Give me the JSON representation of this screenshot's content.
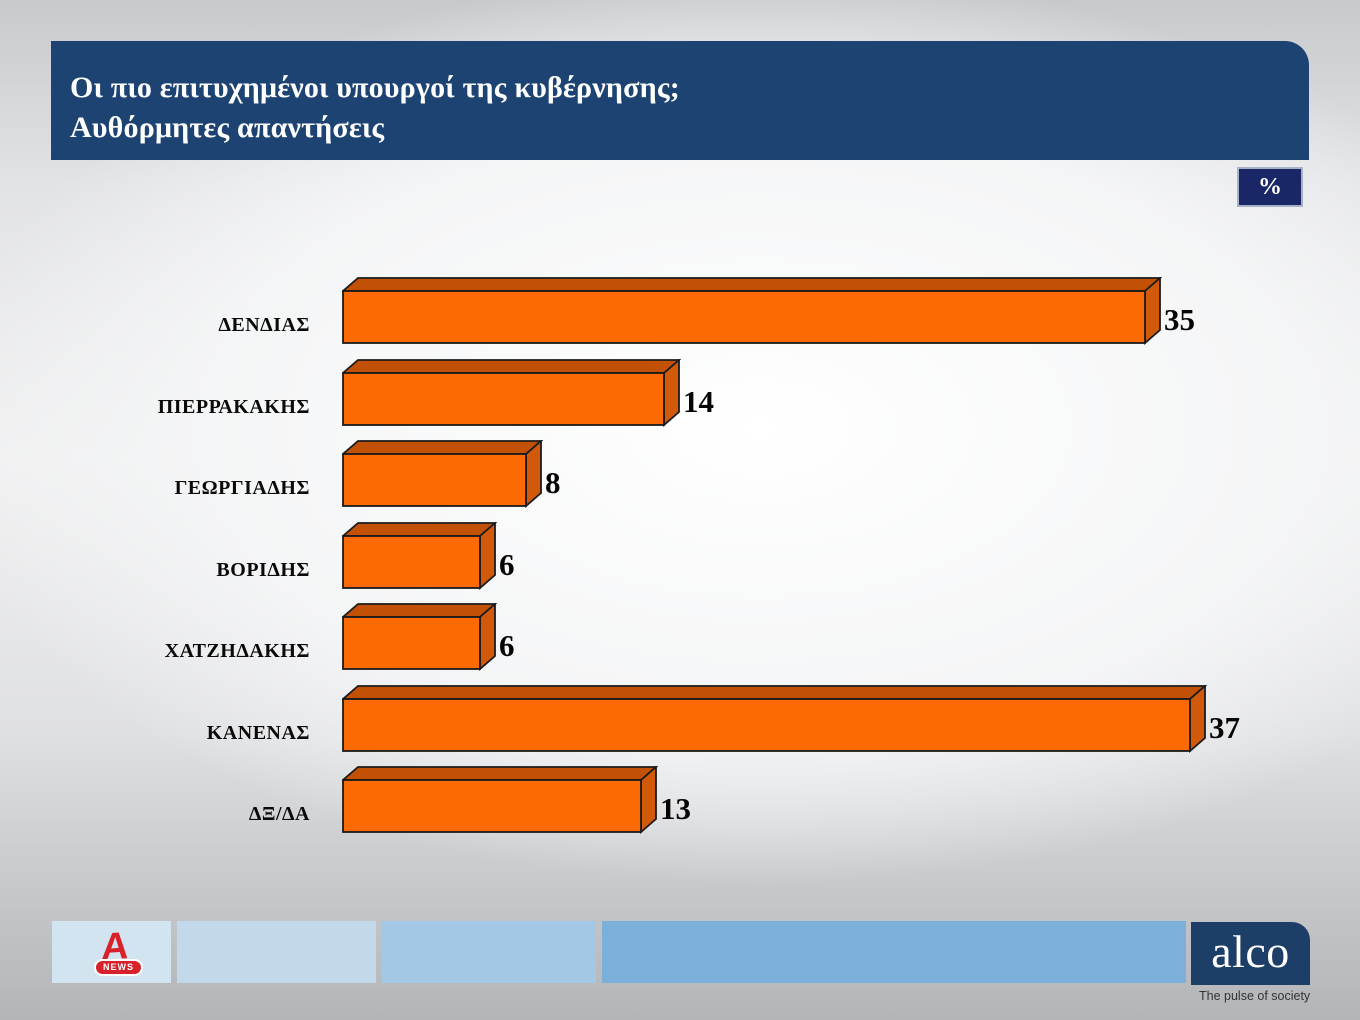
{
  "slide": {
    "title_line1": "Οι πιο επιτυχημένοι υπουργοί της κυβέρνησης;",
    "title_line2": "Αυθόρμητες απαντήσεις",
    "unit_badge": "%"
  },
  "chart_data": {
    "type": "bar",
    "orientation": "horizontal",
    "bar_style": "3d",
    "title": "Οι πιο επιτυχημένοι υπουργοί της κυβέρνησης; Αυθόρμητες απαντήσεις",
    "unit": "%",
    "categories": [
      "ΔΕΝΔΙΑΣ",
      "ΠΙΕΡΡΑΚΑΚΗΣ",
      "ΓΕΩΡΓΙΑΔΗΣ",
      "ΒΟΡΙΔΗΣ",
      "ΧΑΤΖΗΔΑΚΗΣ",
      "ΚΑΝΕΝΑΣ",
      "ΔΞ/ΔΑ"
    ],
    "values": [
      35,
      14,
      8,
      6,
      6,
      37,
      13
    ],
    "xlim": [
      0,
      40
    ],
    "grid": false,
    "legend": false,
    "value_labels": true,
    "colors": {
      "front": "#fb6a05",
      "top": "#c25106",
      "side": "#d05a0a",
      "outline": "#1b1b1b",
      "text": "#050505"
    }
  },
  "footer": {
    "alpha_letter": "A",
    "alpha_news_label": "NEWS",
    "alco_label": "alco",
    "alco_tagline": "The pulse of society"
  },
  "colors": {
    "title_bar": "#1c4371",
    "title_text": "#ffffff",
    "percent_badge_bg": "#1a2766",
    "percent_badge_border": "#a8b2c6",
    "alpha_red": "#d7222b",
    "alco_navy": "#1d3e66",
    "footer_boxes": [
      "#d3e4f1",
      "#c2d8eb",
      "#a3c8e5",
      "#7cafda"
    ]
  }
}
